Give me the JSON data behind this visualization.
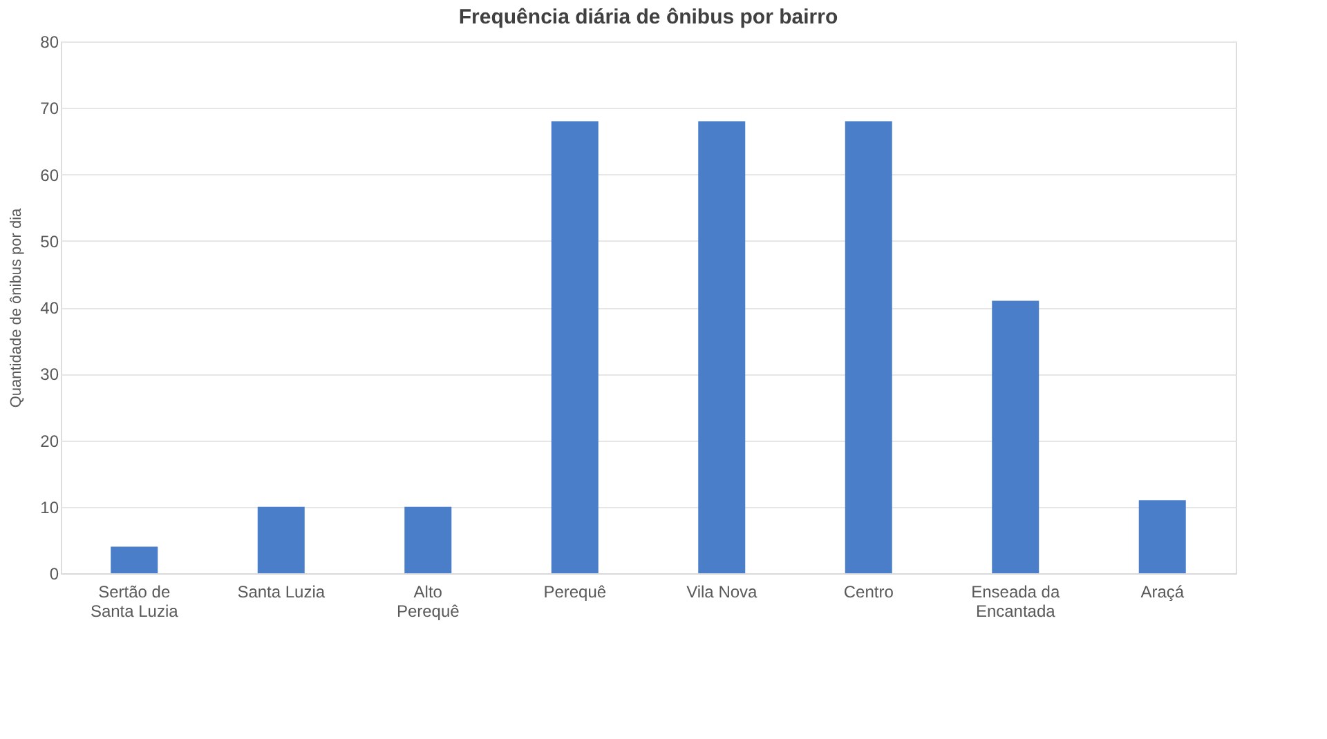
{
  "chart_data": {
    "type": "bar",
    "title": "Frequência diária de ônibus por bairro",
    "ylabel": "Quantidade de ônibus por dia",
    "categories": [
      "Sertão de Santa Luzia",
      "Santa Luzia",
      "Alto Perequê",
      "Perequê",
      "Vila Nova",
      "Centro",
      "Enseada da Encantada",
      "Araçá"
    ],
    "values": [
      4,
      10,
      10,
      68,
      68,
      68,
      41,
      11
    ],
    "color": "#4a7ec8",
    "ylim": [
      0,
      80
    ],
    "yticks": [
      0,
      10,
      20,
      30,
      40,
      50,
      60,
      70,
      80
    ],
    "grid": "y"
  }
}
